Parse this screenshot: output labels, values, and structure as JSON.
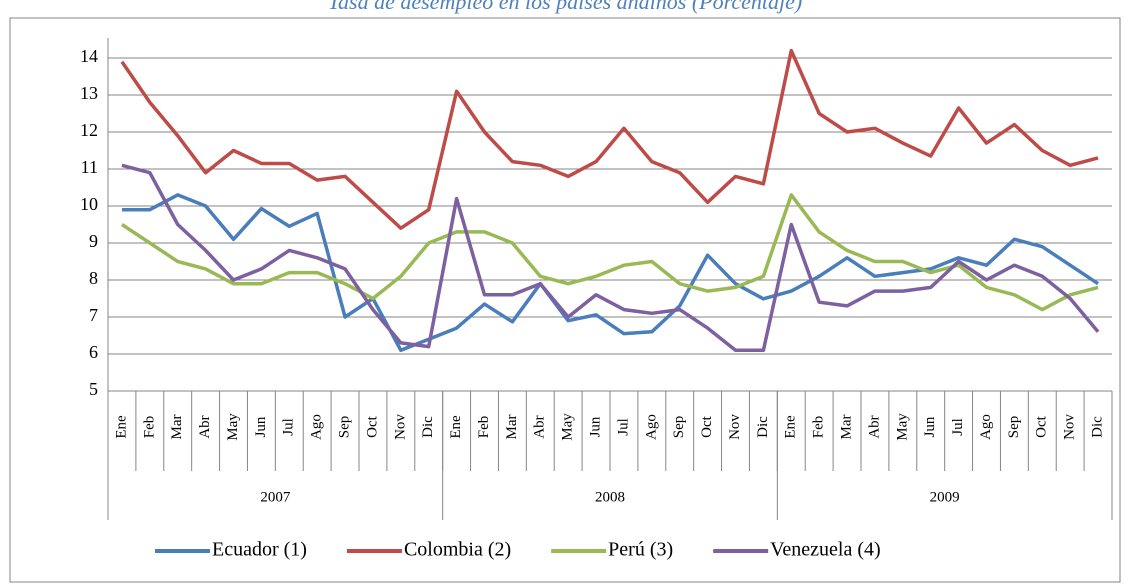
{
  "chart_data": {
    "type": "line",
    "title": "Tasa de desempleo en los países andinos (Porcentaje)",
    "categories": [
      "Ene",
      "Feb",
      "Mar",
      "Abr",
      "May",
      "Jun",
      "Jul",
      "Ago",
      "Sep",
      "Oct",
      "Nov",
      "Dic",
      "Ene",
      "Feb",
      "Mar",
      "Abr",
      "May",
      "Jun",
      "Jul",
      "Ago",
      "Sep",
      "Oct",
      "Nov",
      "Dic",
      "Ene",
      "Feb",
      "Mar",
      "Abr",
      "May",
      "Jun",
      "Jul",
      "Ago",
      "Sep",
      "Oct",
      "Nov",
      "Dic"
    ],
    "years": [
      "2007",
      "2008",
      "2009"
    ],
    "ylim": [
      5,
      14
    ],
    "yticks": [
      5,
      6,
      7,
      8,
      9,
      10,
      11,
      12,
      13,
      14
    ],
    "grid": true,
    "legend": "bottom",
    "series": [
      {
        "name": "Ecuador (1)",
        "color": "#4a7ebb",
        "values": [
          9.9,
          9.9,
          10.3,
          10.0,
          9.1,
          9.93,
          9.45,
          9.8,
          7.0,
          7.5,
          6.1,
          6.4,
          6.7,
          7.35,
          6.87,
          7.9,
          6.9,
          7.06,
          6.55,
          6.6,
          7.3,
          8.67,
          7.9,
          7.49,
          7.7,
          8.1,
          8.6,
          8.1,
          8.2,
          8.3,
          8.6,
          8.4,
          9.1,
          8.9,
          8.4,
          7.9
        ]
      },
      {
        "name": "Colombia (2)",
        "color": "#be4b48",
        "values": [
          13.9,
          12.8,
          11.9,
          10.9,
          11.5,
          11.15,
          11.15,
          10.7,
          10.8,
          10.1,
          9.4,
          9.9,
          13.1,
          12.0,
          11.2,
          11.1,
          10.8,
          11.2,
          12.1,
          11.2,
          10.9,
          10.1,
          10.8,
          10.6,
          14.2,
          12.5,
          12.0,
          12.1,
          11.7,
          11.35,
          12.65,
          11.7,
          12.2,
          11.5,
          11.1,
          11.3
        ]
      },
      {
        "name": "Perú (3)",
        "color": "#98b954",
        "values": [
          9.5,
          9.0,
          8.5,
          8.3,
          7.9,
          7.9,
          8.2,
          8.2,
          7.9,
          7.5,
          8.1,
          9.0,
          9.3,
          9.3,
          9.0,
          8.1,
          7.9,
          8.1,
          8.4,
          8.5,
          7.9,
          7.7,
          7.8,
          8.1,
          10.3,
          9.3,
          8.8,
          8.5,
          8.5,
          8.2,
          8.4,
          7.8,
          7.6,
          7.2,
          7.6,
          7.8
        ]
      },
      {
        "name": "Venezuela (4)",
        "color": "#7d60a0",
        "values": [
          11.1,
          10.9,
          9.5,
          8.8,
          8.0,
          8.3,
          8.8,
          8.6,
          8.3,
          7.2,
          6.3,
          6.2,
          10.2,
          7.6,
          7.6,
          7.9,
          7.0,
          7.6,
          7.2,
          7.1,
          7.2,
          6.7,
          6.1,
          6.1,
          9.5,
          7.4,
          7.3,
          7.7,
          7.7,
          7.8,
          8.5,
          8.0,
          8.4,
          8.1,
          7.5,
          6.6
        ]
      }
    ]
  }
}
